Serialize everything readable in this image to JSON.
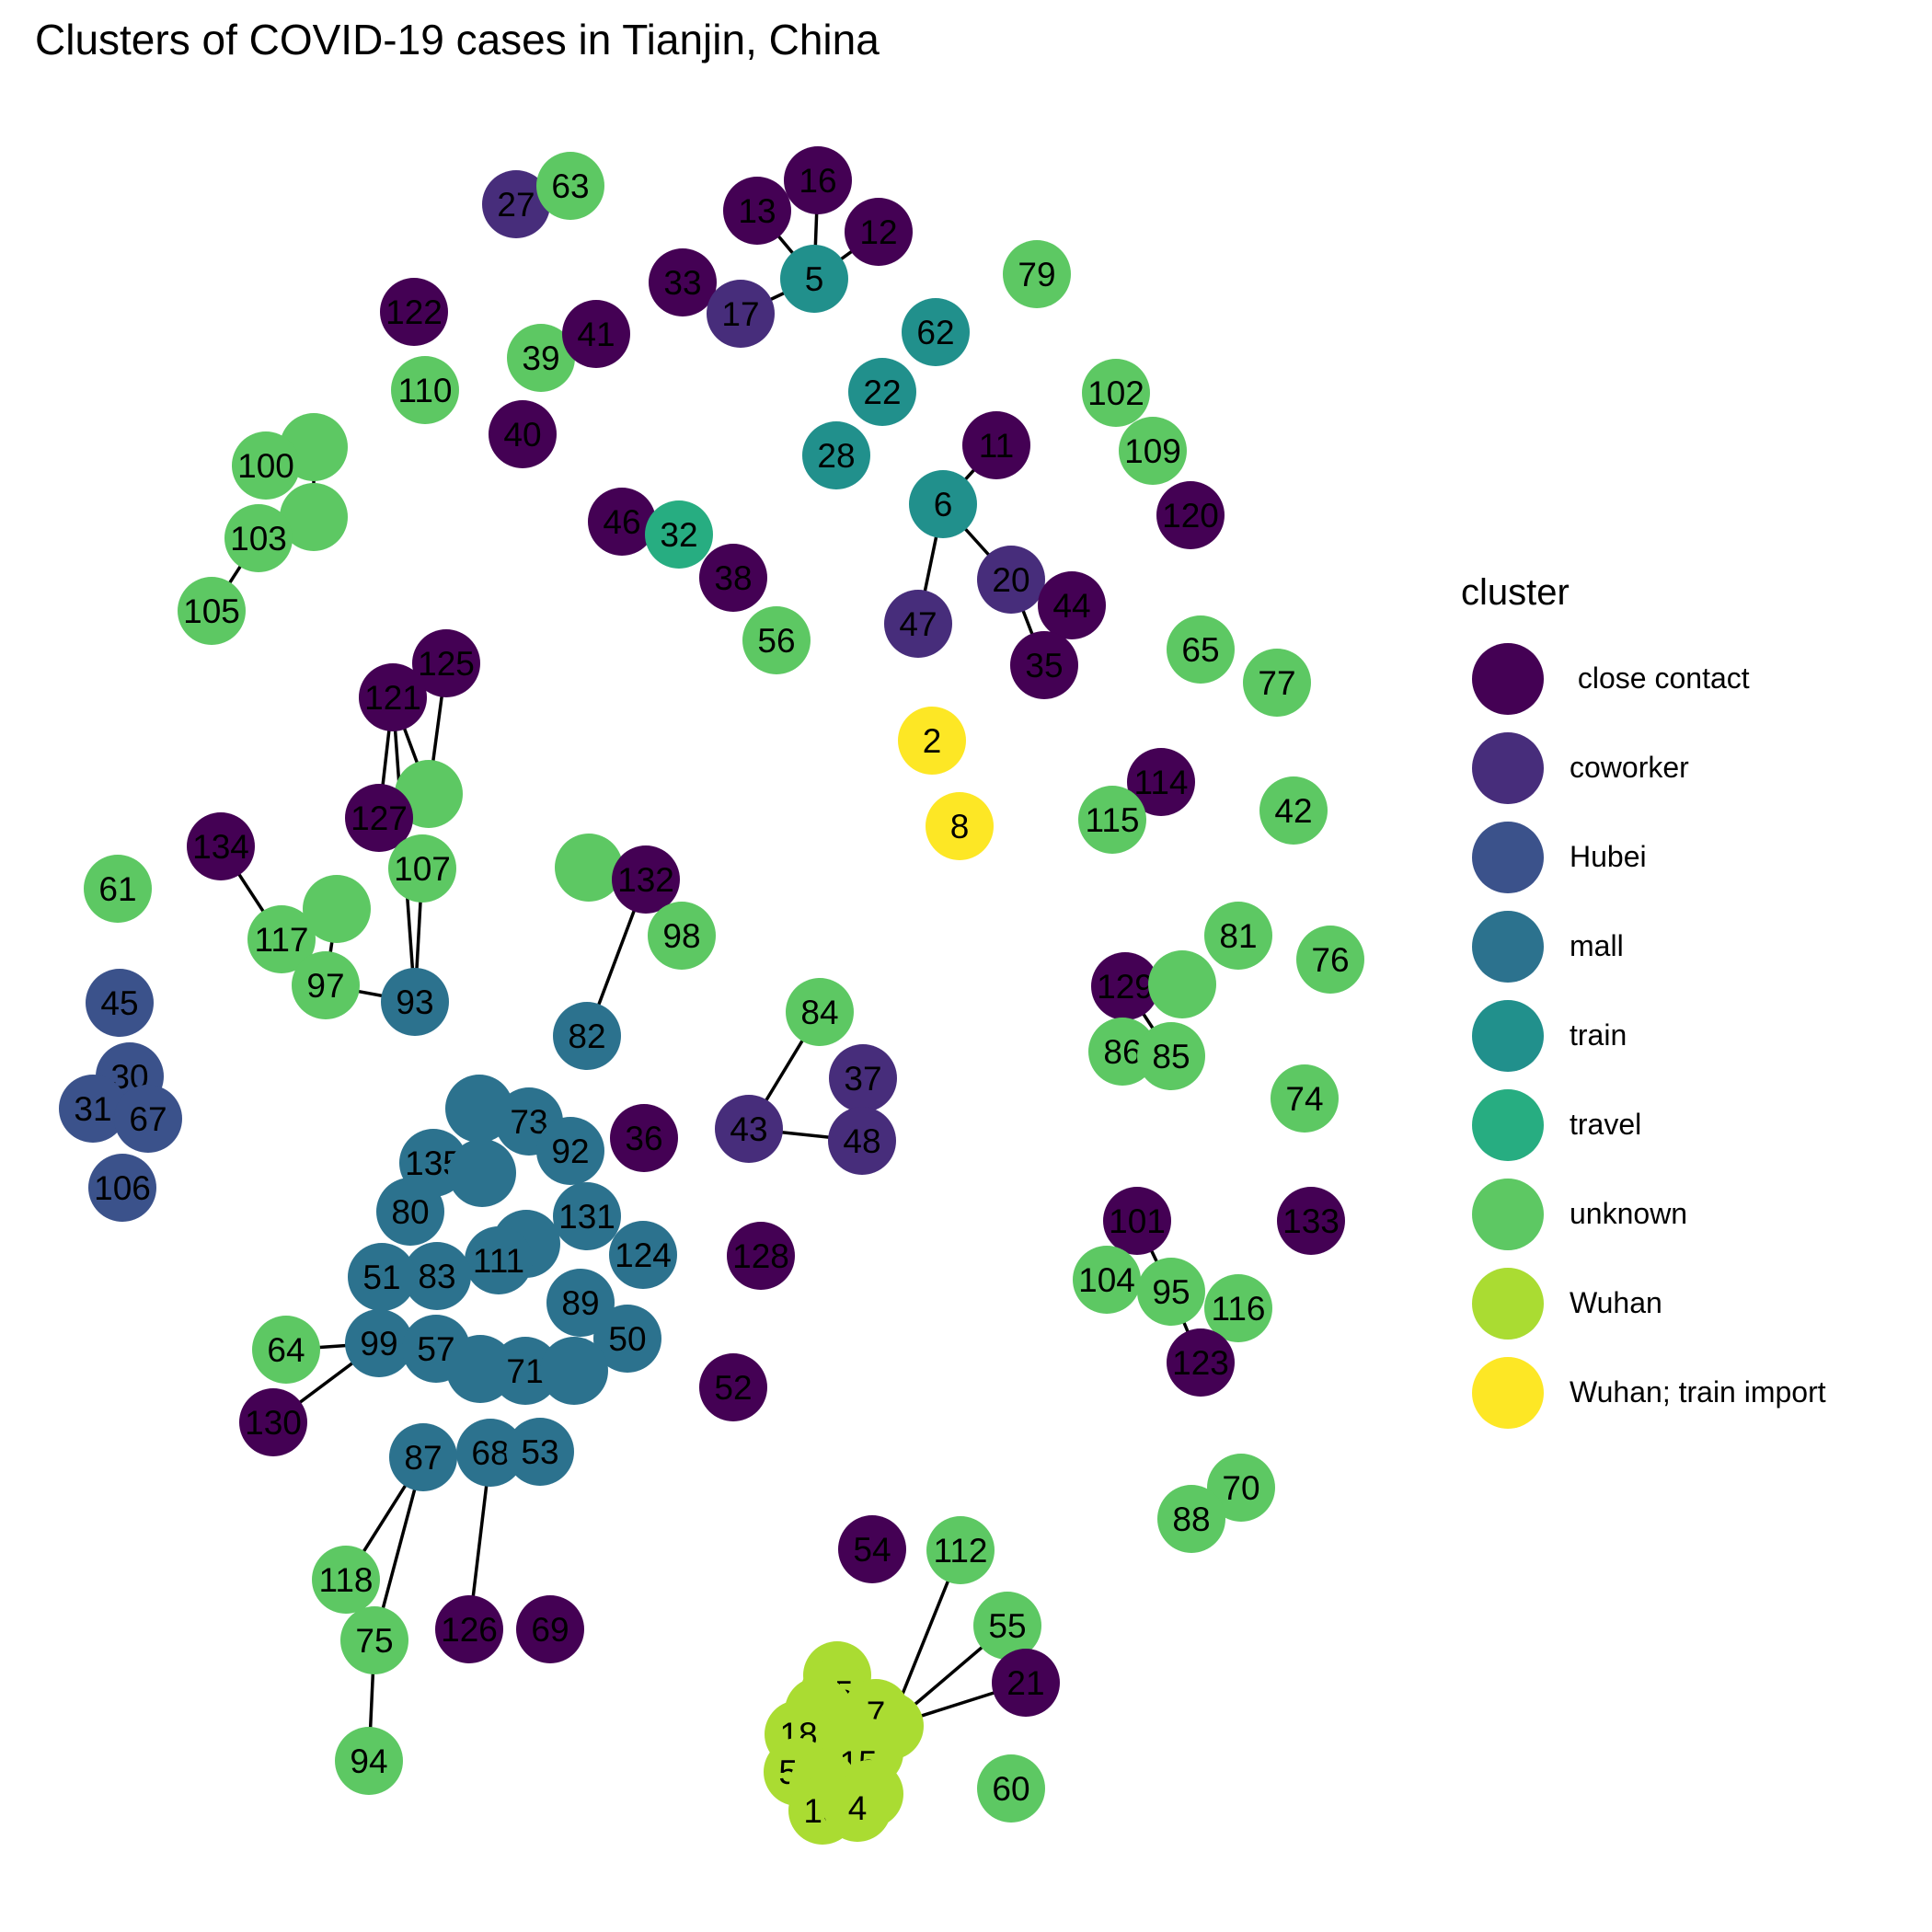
{
  "title": "Clusters of COVID-19 cases in Tianjin, China",
  "chart_data": {
    "type": "network",
    "legend": {
      "title": "cluster",
      "position": "right",
      "items": [
        {
          "key": "close",
          "label": " close contact",
          "color": "#440154"
        },
        {
          "key": "coworker",
          "label": "coworker",
          "color": "#472D7B"
        },
        {
          "key": "hubei",
          "label": "Hubei",
          "color": "#3B528B"
        },
        {
          "key": "mall",
          "label": "mall",
          "color": "#2C728E"
        },
        {
          "key": "train",
          "label": "train",
          "color": "#21908C"
        },
        {
          "key": "travel",
          "label": "travel",
          "color": "#27AD81"
        },
        {
          "key": "unknown",
          "label": "unknown",
          "color": "#5DC863"
        },
        {
          "key": "wuhan",
          "label": "Wuhan",
          "color": "#AADC32"
        },
        {
          "key": "wuhan_train",
          "label": "Wuhan; train import",
          "color": "#FDE725"
        }
      ]
    },
    "nodes": [
      {
        "id": "16",
        "label": "16",
        "cluster": "close"
      },
      {
        "id": "13",
        "label": "13",
        "cluster": "close"
      },
      {
        "id": "12",
        "label": "12",
        "cluster": "close"
      },
      {
        "id": "33",
        "label": "33",
        "cluster": "close"
      },
      {
        "id": "5",
        "label": "5",
        "cluster": "train"
      },
      {
        "id": "17",
        "label": "17",
        "cluster": "coworker"
      },
      {
        "id": "27",
        "label": "27",
        "cluster": "coworker"
      },
      {
        "id": "63",
        "label": "63",
        "cluster": "unknown"
      },
      {
        "id": "79",
        "label": "79",
        "cluster": "unknown"
      },
      {
        "id": "62",
        "label": "62",
        "cluster": "train"
      },
      {
        "id": "122",
        "label": "122",
        "cluster": "close"
      },
      {
        "id": "39",
        "label": "39",
        "cluster": "unknown"
      },
      {
        "id": "41",
        "label": "41",
        "cluster": "close"
      },
      {
        "id": "110",
        "label": "110",
        "cluster": "unknown"
      },
      {
        "id": "40",
        "label": "40",
        "cluster": "close"
      },
      {
        "id": "22",
        "label": "22",
        "cluster": "train"
      },
      {
        "id": "28",
        "label": "28",
        "cluster": "train"
      },
      {
        "id": "102",
        "label": "102",
        "cluster": "unknown"
      },
      {
        "id": "109",
        "label": "109",
        "cluster": "unknown"
      },
      {
        "id": "120",
        "label": "120",
        "cluster": "close"
      },
      {
        "id": "11",
        "label": "11",
        "cluster": "close"
      },
      {
        "id": "6",
        "label": "6",
        "cluster": "train"
      },
      {
        "id": "20",
        "label": "20",
        "cluster": "coworker"
      },
      {
        "id": "44",
        "label": "44",
        "cluster": "close"
      },
      {
        "id": "47",
        "label": "47",
        "cluster": "coworker"
      },
      {
        "id": "35",
        "label": "35",
        "cluster": "close"
      },
      {
        "id": "u_a",
        "label": "",
        "cluster": "unknown"
      },
      {
        "id": "100",
        "label": "100",
        "cluster": "unknown"
      },
      {
        "id": "u_b",
        "label": "",
        "cluster": "unknown"
      },
      {
        "id": "103",
        "label": "103",
        "cluster": "unknown"
      },
      {
        "id": "105",
        "label": "105",
        "cluster": "unknown"
      },
      {
        "id": "46",
        "label": "46",
        "cluster": "close"
      },
      {
        "id": "32",
        "label": "32",
        "cluster": "travel"
      },
      {
        "id": "38",
        "label": "38",
        "cluster": "close"
      },
      {
        "id": "56",
        "label": "56",
        "cluster": "unknown"
      },
      {
        "id": "65",
        "label": "65",
        "cluster": "unknown"
      },
      {
        "id": "77",
        "label": "77",
        "cluster": "unknown"
      },
      {
        "id": "2",
        "label": "2",
        "cluster": "wuhan_train"
      },
      {
        "id": "8",
        "label": "8",
        "cluster": "wuhan_train"
      },
      {
        "id": "114",
        "label": "114",
        "cluster": "close"
      },
      {
        "id": "115",
        "label": "115",
        "cluster": "unknown"
      },
      {
        "id": "42",
        "label": "42",
        "cluster": "unknown"
      },
      {
        "id": "125",
        "label": "125",
        "cluster": "close"
      },
      {
        "id": "121",
        "label": "121",
        "cluster": "close"
      },
      {
        "id": "u_c",
        "label": "",
        "cluster": "unknown"
      },
      {
        "id": "127",
        "label": "127",
        "cluster": "close"
      },
      {
        "id": "107",
        "label": "107",
        "cluster": "unknown"
      },
      {
        "id": "134",
        "label": "134",
        "cluster": "close"
      },
      {
        "id": "u_d",
        "label": "",
        "cluster": "unknown"
      },
      {
        "id": "117",
        "label": "117",
        "cluster": "unknown"
      },
      {
        "id": "97",
        "label": "97",
        "cluster": "unknown"
      },
      {
        "id": "93",
        "label": "93",
        "cluster": "mall"
      },
      {
        "id": "61",
        "label": "61",
        "cluster": "unknown"
      },
      {
        "id": "u_e",
        "label": "",
        "cluster": "unknown"
      },
      {
        "id": "132",
        "label": "132",
        "cluster": "close"
      },
      {
        "id": "98",
        "label": "98",
        "cluster": "unknown"
      },
      {
        "id": "82",
        "label": "82",
        "cluster": "mall"
      },
      {
        "id": "84",
        "label": "84",
        "cluster": "unknown"
      },
      {
        "id": "37",
        "label": "37",
        "cluster": "coworker"
      },
      {
        "id": "43",
        "label": "43",
        "cluster": "coworker"
      },
      {
        "id": "48",
        "label": "48",
        "cluster": "coworker"
      },
      {
        "id": "81",
        "label": "81",
        "cluster": "unknown"
      },
      {
        "id": "76",
        "label": "76",
        "cluster": "unknown"
      },
      {
        "id": "129",
        "label": "129",
        "cluster": "close"
      },
      {
        "id": "u_f",
        "label": "",
        "cluster": "unknown"
      },
      {
        "id": "86",
        "label": "86",
        "cluster": "unknown"
      },
      {
        "id": "85",
        "label": "85",
        "cluster": "unknown"
      },
      {
        "id": "74",
        "label": "74",
        "cluster": "unknown"
      },
      {
        "id": "45",
        "label": "45",
        "cluster": "hubei"
      },
      {
        "id": "30",
        "label": "30",
        "cluster": "hubei"
      },
      {
        "id": "31",
        "label": "31",
        "cluster": "hubei"
      },
      {
        "id": "67",
        "label": "67",
        "cluster": "hubei"
      },
      {
        "id": "106",
        "label": "106",
        "cluster": "hubei"
      },
      {
        "id": "m_a",
        "label": "",
        "cluster": "mall"
      },
      {
        "id": "73",
        "label": "73",
        "cluster": "mall"
      },
      {
        "id": "92",
        "label": "92",
        "cluster": "mall"
      },
      {
        "id": "135",
        "label": "135",
        "cluster": "mall"
      },
      {
        "id": "m_b",
        "label": "",
        "cluster": "mall"
      },
      {
        "id": "80",
        "label": "80",
        "cluster": "mall"
      },
      {
        "id": "131",
        "label": "131",
        "cluster": "mall"
      },
      {
        "id": "124",
        "label": "124",
        "cluster": "mall"
      },
      {
        "id": "m_c",
        "label": "",
        "cluster": "mall"
      },
      {
        "id": "111",
        "label": "111",
        "cluster": "mall"
      },
      {
        "id": "83",
        "label": "83",
        "cluster": "mall"
      },
      {
        "id": "51",
        "label": "51",
        "cluster": "mall"
      },
      {
        "id": "89",
        "label": "89",
        "cluster": "mall"
      },
      {
        "id": "50",
        "label": "50",
        "cluster": "mall"
      },
      {
        "id": "99",
        "label": "99",
        "cluster": "mall"
      },
      {
        "id": "57",
        "label": "57",
        "cluster": "mall"
      },
      {
        "id": "m_d",
        "label": "",
        "cluster": "mall"
      },
      {
        "id": "71",
        "label": "71",
        "cluster": "mall"
      },
      {
        "id": "m_e",
        "label": "",
        "cluster": "mall"
      },
      {
        "id": "36",
        "label": "36",
        "cluster": "close"
      },
      {
        "id": "128",
        "label": "128",
        "cluster": "close"
      },
      {
        "id": "64",
        "label": "64",
        "cluster": "unknown"
      },
      {
        "id": "130",
        "label": "130",
        "cluster": "close"
      },
      {
        "id": "52",
        "label": "52",
        "cluster": "close"
      },
      {
        "id": "101",
        "label": "101",
        "cluster": "close"
      },
      {
        "id": "133",
        "label": "133",
        "cluster": "close"
      },
      {
        "id": "104",
        "label": "104",
        "cluster": "unknown"
      },
      {
        "id": "95",
        "label": "95",
        "cluster": "unknown"
      },
      {
        "id": "116",
        "label": "116",
        "cluster": "unknown"
      },
      {
        "id": "123",
        "label": "123",
        "cluster": "close"
      },
      {
        "id": "87",
        "label": "87",
        "cluster": "mall"
      },
      {
        "id": "68",
        "label": "68",
        "cluster": "mall"
      },
      {
        "id": "53",
        "label": "53",
        "cluster": "mall"
      },
      {
        "id": "118",
        "label": "118",
        "cluster": "unknown"
      },
      {
        "id": "75",
        "label": "75",
        "cluster": "unknown"
      },
      {
        "id": "126",
        "label": "126",
        "cluster": "close"
      },
      {
        "id": "69",
        "label": "69",
        "cluster": "close"
      },
      {
        "id": "94",
        "label": "94",
        "cluster": "unknown"
      },
      {
        "id": "70",
        "label": "70",
        "cluster": "unknown"
      },
      {
        "id": "88",
        "label": "88",
        "cluster": "unknown"
      },
      {
        "id": "54",
        "label": "54",
        "cluster": "close"
      },
      {
        "id": "112",
        "label": "112",
        "cluster": "unknown"
      },
      {
        "id": "55",
        "label": "55",
        "cluster": "unknown"
      },
      {
        "id": "21",
        "label": "21",
        "cluster": "close"
      },
      {
        "id": "60",
        "label": "60",
        "cluster": "unknown"
      },
      {
        "id": "w_a",
        "label": "",
        "cluster": "wuhan"
      },
      {
        "id": "25",
        "label": "25",
        "cluster": "wuhan"
      },
      {
        "id": "w_b",
        "label": "",
        "cluster": "wuhan"
      },
      {
        "id": "w_c",
        "label": "",
        "cluster": "wuhan"
      },
      {
        "id": "7",
        "label": "7",
        "cluster": "wuhan"
      },
      {
        "id": "18",
        "label": "18",
        "cluster": "wuhan"
      },
      {
        "id": "w_d",
        "label": "",
        "cluster": "wuhan"
      },
      {
        "id": "15",
        "label": "15",
        "cluster": "wuhan"
      },
      {
        "id": "59",
        "label": "59",
        "cluster": "wuhan"
      },
      {
        "id": "w_e",
        "label": "",
        "cluster": "wuhan"
      },
      {
        "id": "w_f",
        "label": "",
        "cluster": "wuhan"
      },
      {
        "id": "19",
        "label": "19",
        "cluster": "wuhan"
      },
      {
        "id": "4",
        "label": "4",
        "cluster": "wuhan"
      }
    ],
    "edges": [
      [
        "13",
        "5"
      ],
      [
        "16",
        "5"
      ],
      [
        "12",
        "5"
      ],
      [
        "17",
        "5"
      ],
      [
        "11",
        "6"
      ],
      [
        "6",
        "20"
      ],
      [
        "6",
        "47"
      ],
      [
        "20",
        "35"
      ],
      [
        "u_a",
        "u_b"
      ],
      [
        "u_b",
        "103"
      ],
      [
        "103",
        "105"
      ],
      [
        "121",
        "u_c"
      ],
      [
        "125",
        "u_c"
      ],
      [
        "121",
        "127"
      ],
      [
        "121",
        "93"
      ],
      [
        "107",
        "93"
      ],
      [
        "134",
        "117"
      ],
      [
        "97",
        "93"
      ],
      [
        "u_d",
        "97"
      ],
      [
        "132",
        "82"
      ],
      [
        "84",
        "43"
      ],
      [
        "43",
        "48"
      ],
      [
        "129",
        "85"
      ],
      [
        "64",
        "99"
      ],
      [
        "99",
        "130"
      ],
      [
        "101",
        "95"
      ],
      [
        "95",
        "123"
      ],
      [
        "87",
        "118"
      ],
      [
        "87",
        "75"
      ],
      [
        "75",
        "94"
      ],
      [
        "68",
        "126"
      ],
      [
        "112",
        "w_c"
      ],
      [
        "55",
        "w_c"
      ],
      [
        "21",
        "w_c"
      ]
    ]
  }
}
